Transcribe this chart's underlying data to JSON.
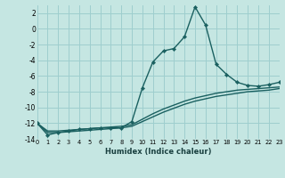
{
  "xlabel": "Humidex (Indice chaleur)",
  "bg_color": "#c5e6e2",
  "grid_color": "#9ecece",
  "line_color": "#1a6060",
  "xlim": [
    0,
    23
  ],
  "ylim": [
    -14,
    3
  ],
  "xticks": [
    0,
    1,
    2,
    3,
    4,
    5,
    6,
    7,
    8,
    9,
    10,
    11,
    12,
    13,
    14,
    15,
    16,
    17,
    18,
    19,
    20,
    21,
    22,
    23
  ],
  "yticks": [
    -14,
    -12,
    -10,
    -8,
    -6,
    -4,
    -2,
    0,
    2
  ],
  "series1_x": [
    0,
    1,
    2,
    3,
    4,
    5,
    6,
    7,
    8,
    9,
    10,
    11,
    12,
    13,
    14,
    15,
    16,
    17,
    18,
    19,
    20,
    21,
    22,
    23
  ],
  "series1_y": [
    -12,
    -13.0,
    -13.0,
    -12.9,
    -12.8,
    -12.7,
    -12.6,
    -12.5,
    -12.4,
    -12.2,
    -11.5,
    -10.8,
    -10.2,
    -9.7,
    -9.2,
    -8.8,
    -8.5,
    -8.2,
    -8.0,
    -7.8,
    -7.7,
    -7.6,
    -7.5,
    -7.4
  ],
  "series2_x": [
    0,
    1,
    2,
    3,
    4,
    5,
    6,
    7,
    8,
    9,
    10,
    11,
    12,
    13,
    14,
    15,
    16,
    17,
    18,
    19,
    20,
    21,
    22,
    23
  ],
  "series2_y": [
    -12,
    -13.2,
    -13.2,
    -13.1,
    -13.0,
    -12.9,
    -12.8,
    -12.7,
    -12.6,
    -12.4,
    -11.8,
    -11.2,
    -10.6,
    -10.1,
    -9.6,
    -9.2,
    -8.9,
    -8.6,
    -8.4,
    -8.2,
    -8.0,
    -7.9,
    -7.8,
    -7.6
  ],
  "series3_x": [
    0,
    1,
    2,
    3,
    4,
    5,
    6,
    7,
    8,
    9,
    10,
    11,
    12,
    13,
    14,
    15,
    16,
    17,
    18,
    19,
    20,
    21,
    22,
    23
  ],
  "series3_y": [
    -12,
    -13.5,
    -13.2,
    -13.0,
    -12.8,
    -12.7,
    -12.6,
    -12.6,
    -12.6,
    -11.8,
    -7.5,
    -4.2,
    -2.8,
    -2.5,
    -1.0,
    2.8,
    0.5,
    -4.5,
    -5.8,
    -6.8,
    -7.2,
    -7.3,
    -7.1,
    -6.8
  ]
}
